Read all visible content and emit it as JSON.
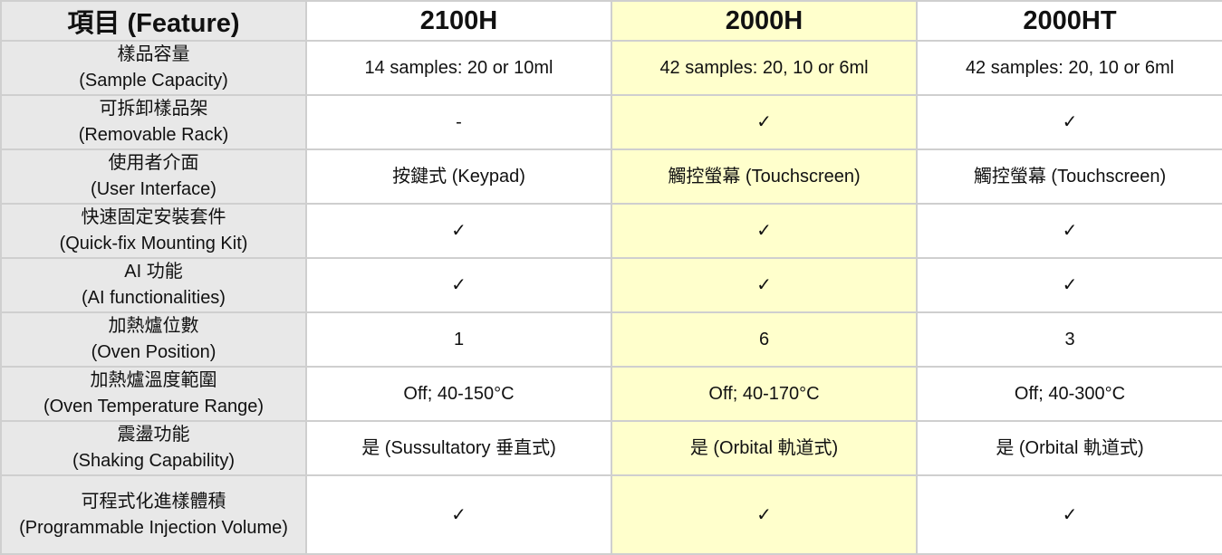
{
  "header": {
    "feature": "項目 (Feature)",
    "models": [
      "2100H",
      "2000H",
      "2000HT"
    ],
    "highlight_color": "#ffffcc"
  },
  "rows": [
    {
      "zh": "樣品容量",
      "en": "(Sample Capacity)",
      "values": [
        "14 samples: 20 or 10ml",
        "42 samples: 20, 10 or 6ml",
        "42 samples: 20, 10 or 6ml"
      ]
    },
    {
      "zh": "可拆卸樣品架",
      "en": "(Removable Rack)",
      "values": [
        "-",
        "✓",
        "✓"
      ]
    },
    {
      "zh": "使用者介面",
      "en": "(User Interface)",
      "values": [
        "按鍵式 (Keypad)",
        "觸控螢幕 (Touchscreen)",
        "觸控螢幕 (Touchscreen)"
      ]
    },
    {
      "zh": "快速固定安裝套件",
      "en": "(Quick-fix Mounting Kit)",
      "values": [
        "✓",
        "✓",
        "✓"
      ]
    },
    {
      "zh": "AI 功能",
      "en": "(AI functionalities)",
      "values": [
        "✓",
        "✓",
        "✓"
      ]
    },
    {
      "zh": "加熱爐位數",
      "en": "(Oven Position)",
      "values": [
        "1",
        "6",
        "3"
      ]
    },
    {
      "zh": "加熱爐溫度範圍",
      "en": "(Oven Temperature Range)",
      "values": [
        "Off; 40-150°C",
        "Off; 40-170°C",
        "Off; 40-300°C"
      ]
    },
    {
      "zh": "震盪功能",
      "en": "(Shaking Capability)",
      "values": [
        "是 (Sussultatory 垂直式)",
        "是 (Orbital 軌道式)",
        "是 (Orbital 軌道式)"
      ]
    },
    {
      "zh": "可程式化進樣體積",
      "en": "(Programmable Injection Volume)",
      "values": [
        "✓",
        "✓",
        "✓"
      ]
    }
  ]
}
